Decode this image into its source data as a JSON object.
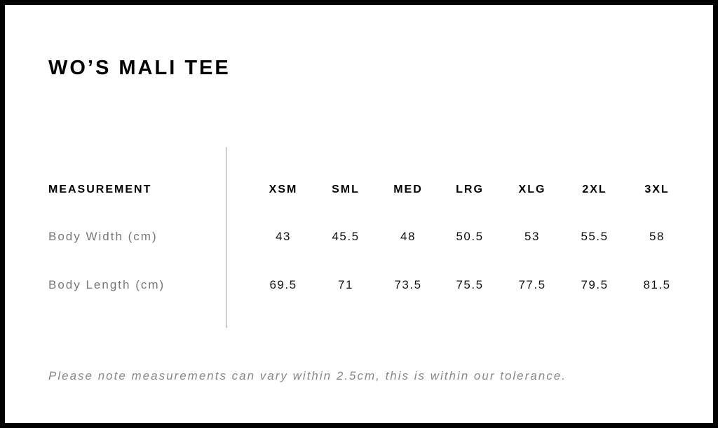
{
  "title": "WO’S MALI TEE",
  "table": {
    "header_label": "MEASUREMENT",
    "sizes": [
      "XSM",
      "SML",
      "MED",
      "LRG",
      "XLG",
      "2XL",
      "3XL"
    ],
    "rows": [
      {
        "label": "Body Width (cm)",
        "values": [
          "43",
          "45.5",
          "48",
          "50.5",
          "53",
          "55.5",
          "58"
        ]
      },
      {
        "label": "Body Length (cm)",
        "values": [
          "69.5",
          "71",
          "73.5",
          "75.5",
          "77.5",
          "79.5",
          "81.5"
        ]
      }
    ]
  },
  "note": "Please note measurements can vary within 2.5cm, this is within our tolerance."
}
